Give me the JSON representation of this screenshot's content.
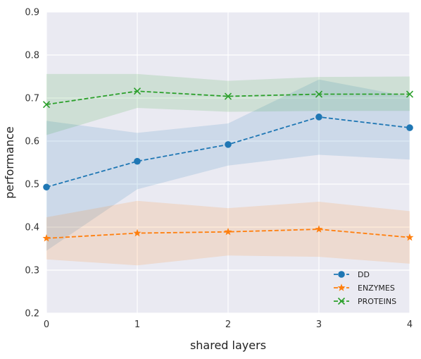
{
  "chart_data": {
    "type": "line",
    "x": [
      0,
      1,
      2,
      3,
      4
    ],
    "xlabel": "shared layers",
    "ylabel": "performance",
    "xlim": [
      0,
      4
    ],
    "ylim": [
      0.2,
      0.9
    ],
    "xticks": [
      "0",
      "1",
      "2",
      "3",
      "4"
    ],
    "yticks": [
      "0.2",
      "0.3",
      "0.4",
      "0.5",
      "0.6",
      "0.7",
      "0.8",
      "0.9"
    ],
    "grid": true,
    "legend_position": "bottom-right",
    "series": [
      {
        "name": "DD",
        "color": "#1f77b4",
        "marker": "circle",
        "values": [
          0.493,
          0.553,
          0.592,
          0.656,
          0.631
        ],
        "lower": [
          0.345,
          0.488,
          0.543,
          0.568,
          0.557
        ],
        "upper": [
          0.647,
          0.619,
          0.641,
          0.743,
          0.703
        ]
      },
      {
        "name": "ENZYMES",
        "color": "#ff7f0e",
        "marker": "star",
        "values": [
          0.374,
          0.386,
          0.389,
          0.395,
          0.376
        ],
        "lower": [
          0.325,
          0.311,
          0.334,
          0.331,
          0.315
        ],
        "upper": [
          0.423,
          0.461,
          0.444,
          0.459,
          0.437
        ]
      },
      {
        "name": "PROTEINS",
        "color": "#2ca02c",
        "marker": "x",
        "values": [
          0.685,
          0.716,
          0.704,
          0.709,
          0.709
        ],
        "lower": [
          0.614,
          0.677,
          0.668,
          0.67,
          0.67
        ],
        "upper": [
          0.756,
          0.756,
          0.74,
          0.749,
          0.75
        ]
      }
    ]
  }
}
